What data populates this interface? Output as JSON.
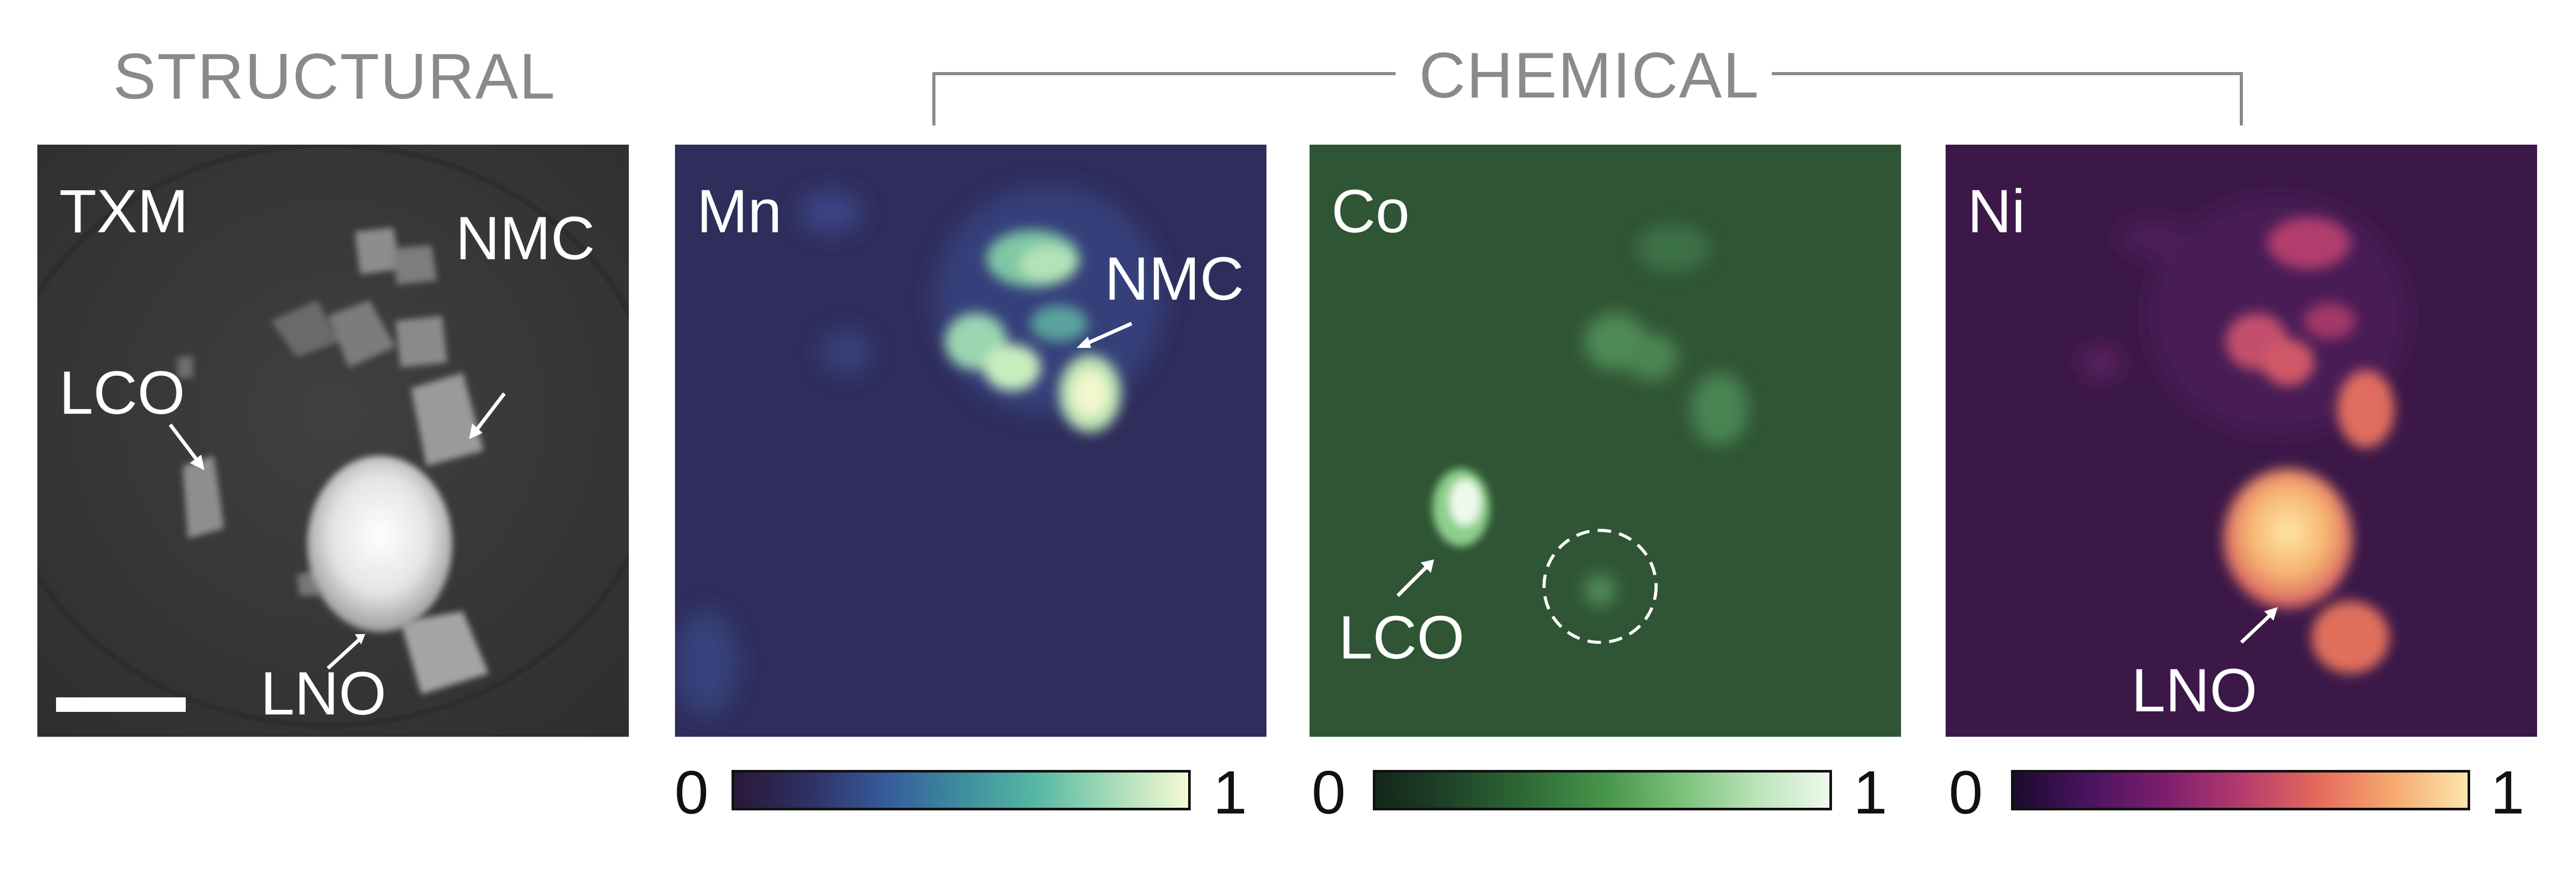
{
  "headings": {
    "structural": "STRUCTURAL",
    "chemical": "CHEMICAL"
  },
  "panels": [
    {
      "label": "TXM",
      "channel": "transmission",
      "colormap": "gray",
      "annotations": [
        "LCO",
        "NMC",
        "LNO"
      ],
      "has_scale_bar": true
    },
    {
      "label": "Mn",
      "colormap": "dark-blue-to-pale-yellow",
      "annotations": [
        "NMC"
      ]
    },
    {
      "label": "Co",
      "colormap": "dark-green-to-white",
      "annotations": [
        "LCO"
      ],
      "dashed_circle": true
    },
    {
      "label": "Ni",
      "colormap": "dark-purple-to-cream",
      "annotations": [
        "LNO"
      ]
    }
  ],
  "colorbars": {
    "mn": {
      "min_label": "0",
      "max_label": "1"
    },
    "co": {
      "min_label": "0",
      "max_label": "1"
    },
    "ni": {
      "min_label": "0",
      "max_label": "1"
    }
  },
  "colors": {
    "heading_gray": "#8a8a8a",
    "txm_background": "#3a3a3a",
    "mn_background": "#2f2d5c",
    "co_background": "#2f5534",
    "ni_background": "#3b1848"
  }
}
